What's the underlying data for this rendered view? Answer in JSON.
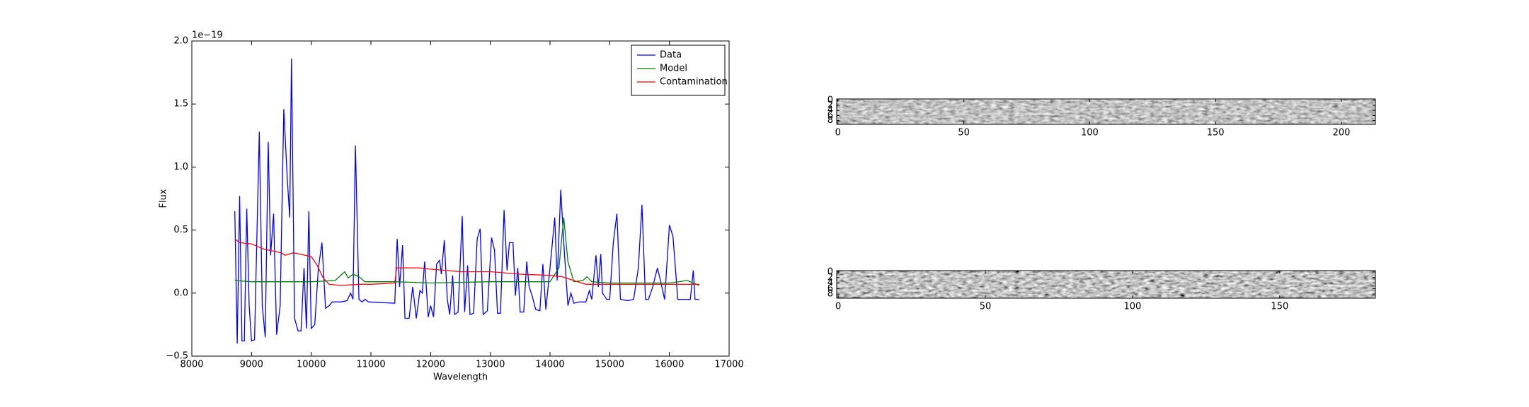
{
  "chart_data": [
    {
      "type": "line",
      "xlabel": "Wavelength",
      "ylabel": "Flux",
      "offset_text": "1e−19",
      "xlim": [
        8000,
        17000
      ],
      "xticks": [
        8000,
        9000,
        10000,
        11000,
        12000,
        13000,
        14000,
        15000,
        16000,
        17000
      ],
      "ylim": [
        -0.5,
        2.0
      ],
      "yticks": [
        {
          "value": -0.5,
          "label": "−0.5"
        },
        {
          "value": 0.0,
          "label": "0.0"
        },
        0.5,
        {
          "value": 1.0,
          "label": "1.0"
        },
        1.5,
        {
          "value": 2.0,
          "label": "2.0"
        }
      ],
      "legend": "upper right",
      "series": [
        {
          "name": "Data",
          "color": "#0000ff",
          "x": [
            8720,
            8760,
            8800,
            8840,
            8880,
            8920,
            8960,
            9000,
            9050,
            9130,
            9180,
            9230,
            9280,
            9320,
            9370,
            9420,
            9480,
            9540,
            9600,
            9640,
            9670,
            9720,
            9780,
            9830,
            9880,
            9920,
            9960,
            10000,
            10060,
            10120,
            10180,
            10240,
            10300,
            10350,
            10500,
            10600,
            10660,
            10700,
            10740,
            10800,
            10850,
            10900,
            10960,
            11400,
            11440,
            11480,
            11530,
            11570,
            11640,
            11700,
            11760,
            11820,
            11860,
            11900,
            11960,
            12000,
            12050,
            12100,
            12150,
            12180,
            12230,
            12280,
            12320,
            12370,
            12400,
            12460,
            12530,
            12570,
            12620,
            12660,
            12720,
            12780,
            12830,
            12880,
            12950,
            13020,
            13070,
            13120,
            13170,
            13230,
            13280,
            13320,
            13380,
            13420,
            13460,
            13500,
            13560,
            13610,
            13650,
            13700,
            13760,
            13830,
            13880,
            13930,
            14000,
            14080,
            14120,
            14180,
            14230,
            14300,
            14350,
            14400,
            14500,
            14600,
            14660,
            14700,
            14770,
            14810,
            14850,
            14880,
            14950,
            15000,
            15060,
            15120,
            15180,
            15300,
            15400,
            15480,
            15540,
            15600,
            15650,
            15720,
            15800,
            15850,
            15920,
            16000,
            16060,
            16140,
            16250,
            16350,
            16400,
            16430,
            16500
          ],
          "values": [
            0.65,
            -0.4,
            0.77,
            -0.38,
            -0.38,
            0.67,
            -0.1,
            -0.38,
            -0.37,
            1.28,
            -0.1,
            -0.35,
            1.2,
            0.3,
            0.63,
            -0.33,
            -0.1,
            1.46,
            0.9,
            0.6,
            1.86,
            -0.2,
            -0.3,
            -0.3,
            0.2,
            -0.28,
            0.65,
            -0.28,
            -0.25,
            0.2,
            0.4,
            -0.12,
            -0.1,
            -0.07,
            -0.07,
            -0.06,
            0.0,
            -0.05,
            1.17,
            -0.05,
            -0.07,
            -0.05,
            -0.07,
            -0.08,
            0.43,
            0.05,
            0.38,
            -0.2,
            -0.2,
            0.05,
            -0.2,
            0.02,
            0.0,
            0.25,
            -0.19,
            -0.1,
            -0.19,
            0.23,
            0.26,
            0.15,
            0.42,
            -0.05,
            -0.17,
            0.14,
            -0.17,
            -0.15,
            0.61,
            -0.15,
            0.22,
            -0.17,
            -0.16,
            0.43,
            0.51,
            -0.17,
            -0.14,
            0.44,
            0.34,
            -0.16,
            -0.16,
            0.66,
            0.18,
            0.4,
            0.4,
            -0.02,
            0.2,
            -0.15,
            -0.15,
            0.25,
            0.05,
            -0.02,
            -0.13,
            -0.14,
            0.23,
            -0.13,
            0.2,
            0.6,
            0.1,
            0.82,
            0.4,
            -0.1,
            0.0,
            -0.08,
            -0.07,
            -0.07,
            0.02,
            -0.05,
            0.3,
            0.05,
            0.31,
            0.0,
            -0.05,
            -0.05,
            0.4,
            0.63,
            -0.05,
            -0.06,
            -0.05,
            0.2,
            0.7,
            -0.05,
            -0.05,
            0.05,
            0.2,
            0.1,
            -0.05,
            0.54,
            0.45,
            -0.05,
            -0.05,
            -0.05,
            0.18,
            -0.05,
            -0.05
          ]
        },
        {
          "name": "Model",
          "color": "#008000",
          "x": [
            8720,
            9000,
            9500,
            10000,
            10400,
            10560,
            10620,
            10700,
            10800,
            10900,
            11400,
            12000,
            13000,
            14000,
            14150,
            14230,
            14300,
            14400,
            14550,
            14620,
            14700,
            15000,
            16000,
            16300,
            16500
          ],
          "values": [
            0.1,
            0.09,
            0.09,
            0.09,
            0.1,
            0.17,
            0.12,
            0.15,
            0.13,
            0.09,
            0.09,
            0.08,
            0.09,
            0.09,
            0.2,
            0.6,
            0.25,
            0.09,
            0.1,
            0.13,
            0.09,
            0.08,
            0.08,
            0.1,
            0.06
          ]
        },
        {
          "name": "Contamination",
          "color": "#ff0000",
          "x": [
            8720,
            8800,
            9000,
            9200,
            9500,
            9560,
            9700,
            9900,
            10000,
            10100,
            10200,
            10300,
            10500,
            10800,
            11000,
            11400,
            11430,
            11800,
            12000,
            12500,
            13000,
            13500,
            14000,
            14200,
            14400,
            14600,
            15000,
            16000,
            16500
          ],
          "values": [
            0.43,
            0.4,
            0.39,
            0.35,
            0.32,
            0.3,
            0.32,
            0.3,
            0.29,
            0.22,
            0.12,
            0.07,
            0.06,
            0.07,
            0.07,
            0.08,
            0.2,
            0.2,
            0.19,
            0.17,
            0.17,
            0.15,
            0.14,
            0.13,
            0.1,
            0.07,
            0.07,
            0.07,
            0.07
          ]
        }
      ]
    },
    {
      "type": "image",
      "xlim": [
        -0.5,
        213.5
      ],
      "ylim": [
        9.5,
        -0.5
      ],
      "xticks": [
        0,
        50,
        100,
        150,
        200
      ],
      "yticks": [
        0,
        2,
        4,
        6,
        8
      ]
    },
    {
      "type": "image",
      "xlim": [
        -0.5,
        182.5
      ],
      "ylim": [
        9.5,
        -0.5
      ],
      "xticks": [
        0,
        50,
        100,
        150
      ],
      "yticks": [
        0,
        2,
        4,
        6,
        8
      ]
    }
  ]
}
